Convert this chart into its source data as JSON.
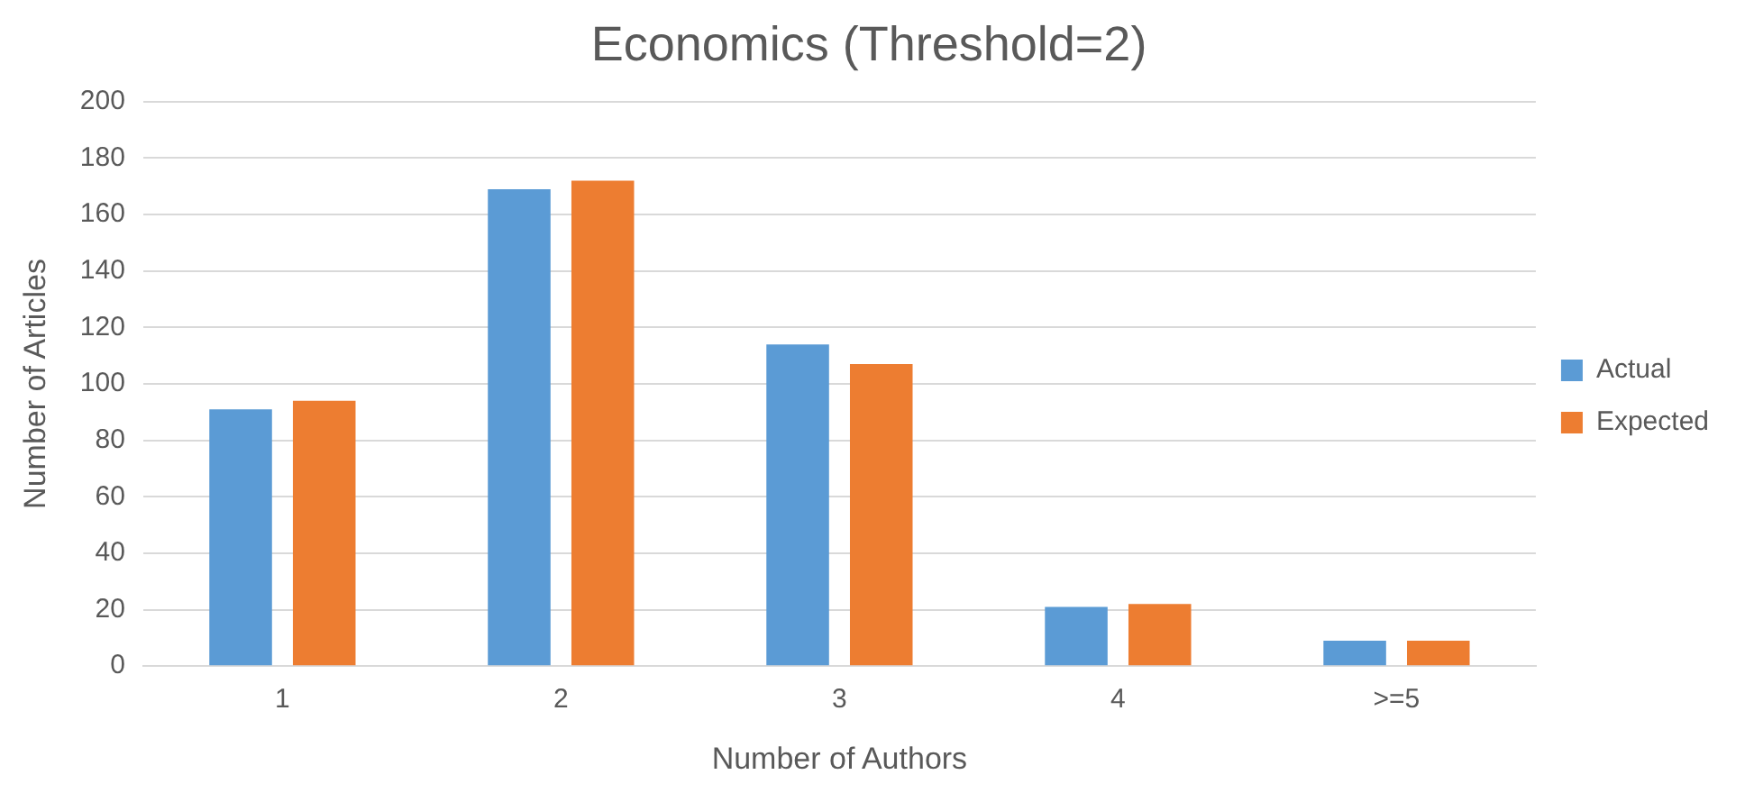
{
  "chart_data": {
    "type": "bar",
    "title": "Economics (Threshold=2)",
    "xlabel": "Number of Authors",
    "ylabel": "Number of Articles",
    "categories": [
      "1",
      "2",
      "3",
      "4",
      ">=5"
    ],
    "series": [
      {
        "name": "Actual",
        "color": "#5b9bd5",
        "values": [
          91,
          169,
          114,
          21,
          9
        ]
      },
      {
        "name": "Expected",
        "color": "#ed7d31",
        "values": [
          94,
          172,
          107,
          22,
          9
        ]
      }
    ],
    "ylim": [
      0,
      200
    ],
    "yticks": [
      0,
      20,
      40,
      60,
      80,
      100,
      120,
      140,
      160,
      180,
      200
    ],
    "grid": "y",
    "legend": "right"
  }
}
